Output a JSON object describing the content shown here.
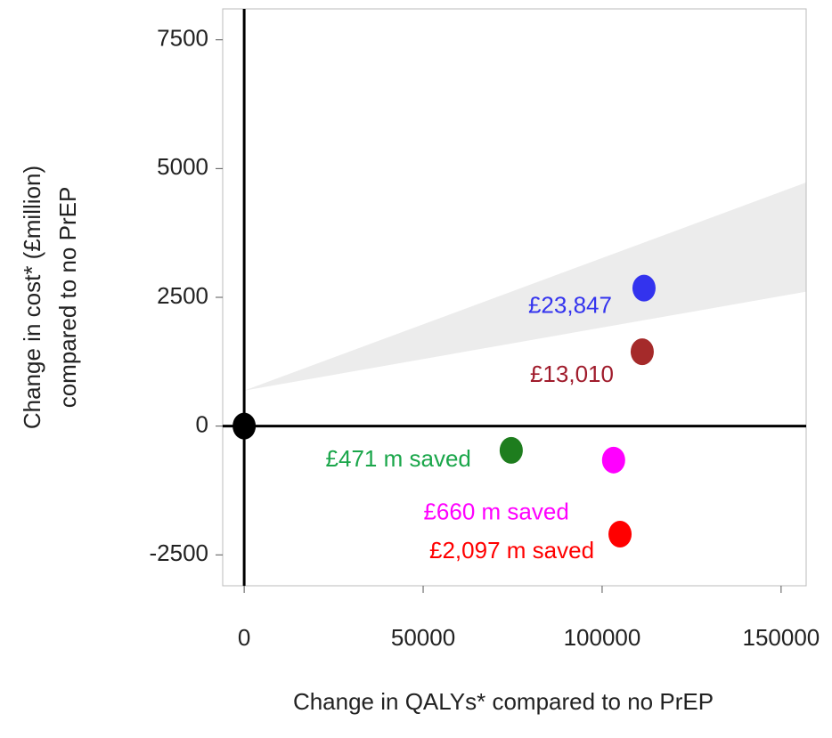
{
  "chart_data": {
    "type": "scatter",
    "xlabel": "Change in QALYs* compared to no PrEP",
    "ylabel": [
      "Change in cost* (£million)",
      "compared to no PrEP"
    ],
    "xlim": [
      -6000,
      157000
    ],
    "ylim": [
      -3100,
      8100
    ],
    "xticks": [
      0,
      50000,
      100000,
      150000
    ],
    "yticks": [
      -2500,
      0,
      2500,
      5000,
      7500
    ],
    "shaded_region": {
      "x": [
        0,
        157000
      ],
      "upper": [
        690,
        4730
      ],
      "lower": [
        690,
        2610
      ],
      "color": "#ececec"
    },
    "points": [
      {
        "x": 0,
        "y": 0,
        "color": "#000000"
      },
      {
        "x": 74600,
        "y": -471,
        "color": "#1e7d1e",
        "label": "£471 m saved",
        "label_color": "#1aa64a"
      },
      {
        "x": 103200,
        "y": -660,
        "color": "#ff00ff",
        "label": "£660 m saved",
        "label_color": "#ff00ff"
      },
      {
        "x": 105000,
        "y": -2097,
        "color": "#ff0000",
        "label": "£2,097 m saved",
        "label_color": "#ff0000"
      },
      {
        "x": 111700,
        "y": 2680,
        "color": "#3333ee",
        "label": "£23,847",
        "label_color": "#3333ee"
      },
      {
        "x": 111200,
        "y": 1443,
        "color": "#a52a2a",
        "label": "£13,010",
        "label_color": "#a01c2c"
      }
    ]
  }
}
